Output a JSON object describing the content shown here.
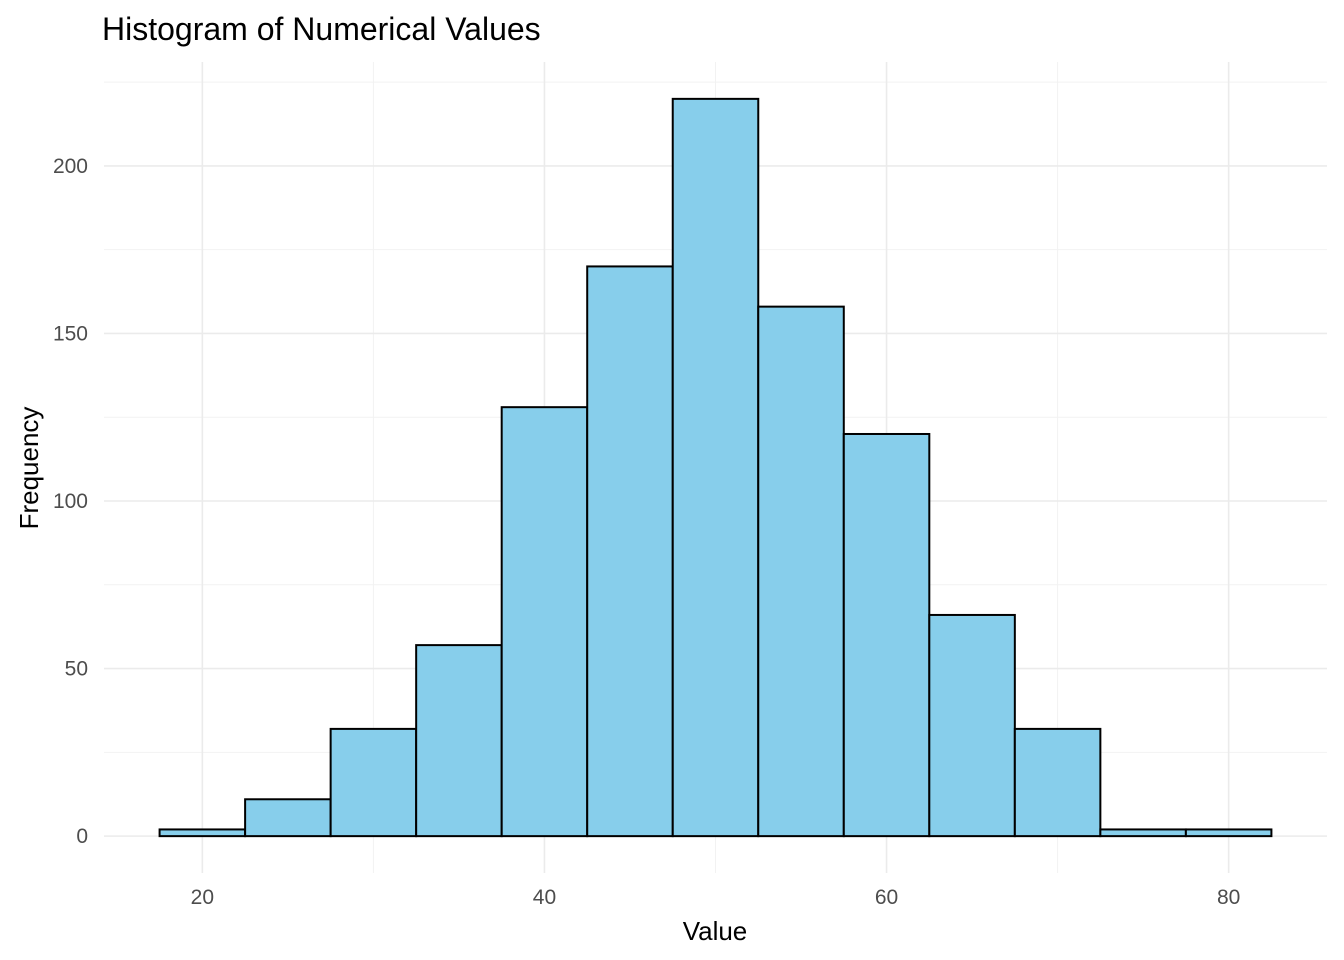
{
  "chart_data": {
    "type": "bar",
    "title": "Histogram of Numerical Values",
    "xlabel": "Value",
    "ylabel": "Frequency",
    "bin_width": 5,
    "bins": [
      {
        "x0": 17.5,
        "x1": 22.5,
        "count": 2
      },
      {
        "x0": 22.5,
        "x1": 27.5,
        "count": 11
      },
      {
        "x0": 27.5,
        "x1": 32.5,
        "count": 32
      },
      {
        "x0": 32.5,
        "x1": 37.5,
        "count": 57
      },
      {
        "x0": 37.5,
        "x1": 42.5,
        "count": 128
      },
      {
        "x0": 42.5,
        "x1": 47.5,
        "count": 170
      },
      {
        "x0": 47.5,
        "x1": 52.5,
        "count": 220
      },
      {
        "x0": 52.5,
        "x1": 57.5,
        "count": 158
      },
      {
        "x0": 57.5,
        "x1": 62.5,
        "count": 120
      },
      {
        "x0": 62.5,
        "x1": 67.5,
        "count": 66
      },
      {
        "x0": 67.5,
        "x1": 72.5,
        "count": 32
      },
      {
        "x0": 72.5,
        "x1": 77.5,
        "count": 2
      },
      {
        "x0": 77.5,
        "x1": 82.5,
        "count": 2
      }
    ],
    "xlim": [
      14.25,
      85.75
    ],
    "ylim": [
      -11,
      231
    ],
    "x_ticks": [
      20,
      40,
      60,
      80
    ],
    "y_ticks": [
      0,
      50,
      100,
      150,
      200
    ],
    "x_minor_ticks": [
      30,
      50,
      70
    ],
    "y_minor_ticks": [
      25,
      75,
      125,
      175,
      225
    ],
    "grid": true,
    "bar_fill": "#87ceeb",
    "bar_outline": "#000000",
    "legend": "none"
  }
}
